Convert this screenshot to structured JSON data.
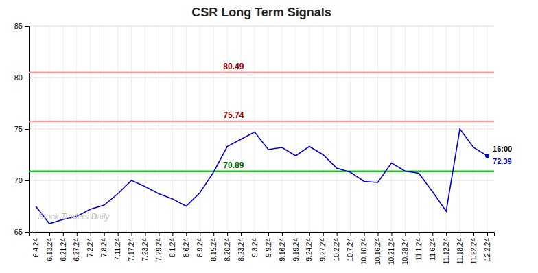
{
  "chart_data": {
    "type": "line",
    "title": "CSR Long Term Signals",
    "categories": [
      "6.4.24",
      "6.13.24",
      "6.21.24",
      "6.27.24",
      "7.2.24",
      "7.8.24",
      "7.11.24",
      "7.17.24",
      "7.23.24",
      "7.29.24",
      "8.1.24",
      "8.6.24",
      "8.9.24",
      "8.15.24",
      "8.20.24",
      "8.23.24",
      "9.3.24",
      "9.9.24",
      "9.16.24",
      "9.19.24",
      "9.24.24",
      "9.27.24",
      "10.2.24",
      "10.7.24",
      "10.10.24",
      "10.16.24",
      "10.21.24",
      "10.28.24",
      "11.1.24",
      "11.6.24",
      "11.12.24",
      "11.18.24",
      "11.22.24",
      "12.2.24"
    ],
    "values": [
      67.5,
      65.8,
      66.2,
      66.5,
      67.2,
      67.6,
      68.7,
      70.0,
      69.4,
      68.7,
      68.2,
      67.5,
      68.8,
      70.8,
      73.3,
      74.0,
      74.7,
      73.0,
      73.2,
      72.4,
      73.3,
      72.5,
      71.2,
      70.8,
      69.9,
      69.8,
      71.7,
      70.9,
      70.7,
      68.9,
      67.0,
      75.0,
      73.2,
      72.39
    ],
    "color": "#0000cc",
    "hlines": [
      {
        "value": 80.49,
        "label": "80.49",
        "color": "#f5a0a0",
        "label_color": "#990000"
      },
      {
        "value": 75.74,
        "label": "75.74",
        "color": "#f5a0a0",
        "label_color": "#990000"
      },
      {
        "value": 70.89,
        "label": "70.89",
        "color": "#22bb22",
        "label_color": "#006600"
      }
    ],
    "annotations": [
      {
        "text": "16:00",
        "color": "#000000"
      },
      {
        "text": "72.39",
        "color": "#0000cc"
      }
    ],
    "watermark": "Stock Traders Daily",
    "watermark_color": "#bbbbbb",
    "ylim": [
      65,
      85
    ],
    "yticks": [
      65,
      70,
      75,
      80,
      85
    ],
    "grid": true
  }
}
